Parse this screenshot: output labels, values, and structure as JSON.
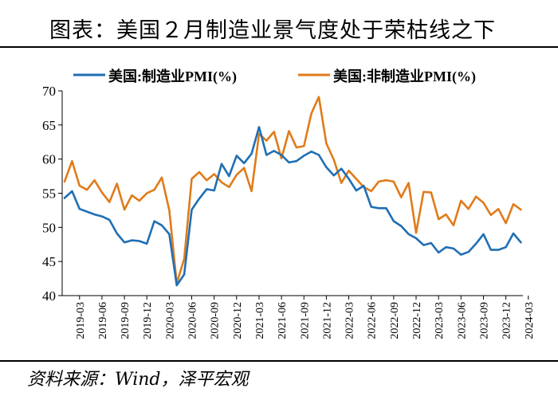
{
  "header": {
    "title": "图表：美国２月制造业景气度处于荣枯线之下"
  },
  "footer": {
    "source": "资料来源：Wind，泽平宏观"
  },
  "colors": {
    "manufacturing": "#1f6fb4",
    "non_manufacturing": "#e07b1a",
    "axis": "#000000"
  },
  "chart_data": {
    "type": "line",
    "title": "",
    "xlabel": "",
    "ylabel": "",
    "ylim": [
      40,
      70
    ],
    "yticks": [
      40,
      45,
      50,
      55,
      60,
      65,
      70
    ],
    "xtick_labels": [
      "2019-03",
      "2019-06",
      "2019-09",
      "2019-12",
      "2020-03",
      "2020-06",
      "2020-09",
      "2020-12",
      "2021-03",
      "2021-06",
      "2021-09",
      "2021-12",
      "2022-03",
      "2022-06",
      "2022-09",
      "2022-12",
      "2023-03",
      "2023-06",
      "2023-09",
      "2023-12",
      "2024-03"
    ],
    "x": [
      "2019-01",
      "2019-02",
      "2019-03",
      "2019-04",
      "2019-05",
      "2019-06",
      "2019-07",
      "2019-08",
      "2019-09",
      "2019-10",
      "2019-11",
      "2019-12",
      "2020-01",
      "2020-02",
      "2020-03",
      "2020-04",
      "2020-05",
      "2020-06",
      "2020-07",
      "2020-08",
      "2020-09",
      "2020-10",
      "2020-11",
      "2020-12",
      "2021-01",
      "2021-02",
      "2021-03",
      "2021-04",
      "2021-05",
      "2021-06",
      "2021-07",
      "2021-08",
      "2021-09",
      "2021-10",
      "2021-11",
      "2021-12",
      "2022-01",
      "2022-02",
      "2022-03",
      "2022-04",
      "2022-05",
      "2022-06",
      "2022-07",
      "2022-08",
      "2022-09",
      "2022-10",
      "2022-11",
      "2022-12",
      "2023-01",
      "2023-02",
      "2023-03",
      "2023-04",
      "2023-05",
      "2023-06",
      "2023-07",
      "2023-08",
      "2023-09",
      "2023-10",
      "2023-11",
      "2023-12",
      "2024-01",
      "2024-02"
    ],
    "legend": [
      "美国:制造业PMI(%)",
      "美国:非制造业PMI(%)"
    ],
    "series": [
      {
        "name": "美国:制造业PMI(%)",
        "values": [
          54.3,
          55.3,
          52.7,
          52.3,
          51.9,
          51.6,
          51.1,
          49.1,
          47.8,
          48.1,
          48.0,
          47.6,
          50.9,
          50.3,
          49.0,
          41.5,
          43.1,
          52.6,
          54.2,
          55.6,
          55.4,
          59.3,
          57.5,
          60.5,
          59.4,
          60.8,
          64.7,
          60.6,
          61.2,
          60.6,
          59.5,
          59.7,
          60.5,
          61.1,
          60.6,
          58.8,
          57.6,
          58.6,
          57.1,
          55.4,
          56.1,
          53.0,
          52.8,
          52.8,
          50.9,
          50.2,
          49.0,
          48.4,
          47.4,
          47.7,
          46.3,
          47.1,
          46.9,
          46.0,
          46.4,
          47.6,
          49.0,
          46.7,
          46.7,
          47.1,
          49.1,
          47.8
        ]
      },
      {
        "name": "美国:非制造业PMI(%)",
        "values": [
          56.7,
          59.7,
          56.1,
          55.5,
          56.9,
          55.1,
          53.7,
          56.4,
          52.6,
          54.7,
          53.9,
          55.0,
          55.5,
          57.3,
          52.5,
          41.8,
          45.4,
          57.1,
          58.1,
          56.9,
          57.8,
          56.6,
          55.9,
          57.7,
          58.7,
          55.3,
          63.7,
          62.7,
          64.0,
          60.1,
          64.1,
          61.7,
          61.9,
          66.7,
          69.1,
          62.3,
          59.9,
          56.5,
          58.3,
          57.1,
          55.9,
          55.3,
          56.7,
          56.9,
          56.7,
          54.4,
          56.5,
          49.2,
          55.2,
          55.1,
          51.2,
          51.9,
          50.3,
          53.9,
          52.7,
          54.5,
          53.6,
          51.8,
          52.7,
          50.6,
          53.4,
          52.6
        ]
      }
    ]
  }
}
